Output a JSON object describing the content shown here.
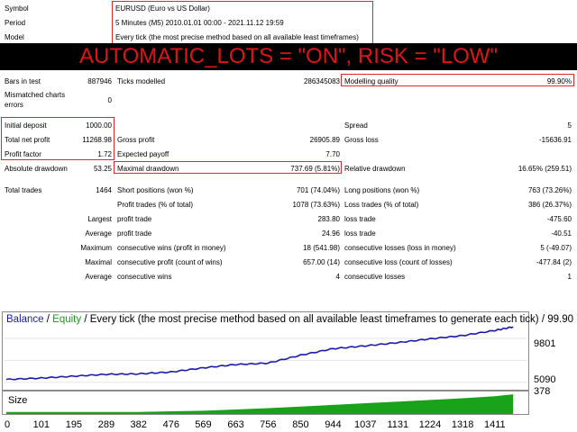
{
  "header": {
    "symbol_label": "Symbol",
    "symbol_value": "EURUSD (Euro vs US Dollar)",
    "period_label": "Period",
    "period_value": "5 Minutes (M5) 2010.01.01 00:00 - 2021.11.12 19:59",
    "model_label": "Model",
    "model_value": "Every tick (the most precise method based on all available least timeframes)"
  },
  "banner": {
    "text": "AUTOMATIC_LOTS = \"ON\", RISK = \"LOW\"",
    "color": "#e01414"
  },
  "stats": {
    "bars_label": "Bars in test",
    "bars_value": "887946",
    "ticks_label": "Ticks modelled",
    "ticks_value": "286345083",
    "quality_label": "Modelling quality",
    "quality_value": "99.90%",
    "mismatch_label_1": "Mismatched charts",
    "mismatch_label_2": "errors",
    "mismatch_value": "0",
    "deposit_label": "Initial deposit",
    "deposit_value": "1000.00",
    "spread_label": "Spread",
    "spread_value": "5",
    "netprofit_label": "Total net profit",
    "netprofit_value": "11268.98",
    "grossprofit_label": "Gross profit",
    "grossprofit_value": "26905.89",
    "grossloss_label": "Gross loss",
    "grossloss_value": "-15636.91",
    "pf_label": "Profit factor",
    "pf_value": "1.72",
    "payoff_label": "Expected payoff",
    "payoff_value": "7.70",
    "absdd_label": "Absolute drawdown",
    "absdd_value": "53.25",
    "maxdd_label": "Maximal drawdown",
    "maxdd_value": "737.69 (5.81%)",
    "reldd_label": "Relative drawdown",
    "reldd_value": "16.65% (259.51)",
    "trades_label": "Total trades",
    "trades_value": "1464",
    "short_label": "Short positions (won %)",
    "short_value": "701 (74.04%)",
    "long_label": "Long positions (won %)",
    "long_value": "763 (73.26%)",
    "profittr_label": "Profit trades (% of total)",
    "profittr_value": "1078 (73.63%)",
    "losstr_label": "Loss trades (% of total)",
    "losstr_value": "386 (26.37%)",
    "largest_label": "Largest",
    "largest_profit_label": "profit trade",
    "largest_profit_value": "283.80",
    "largest_loss_label": "loss trade",
    "largest_loss_value": "-475.60",
    "average_label": "Average",
    "avg_profit_label": "profit trade",
    "avg_profit_value": "24.96",
    "avg_loss_label": "loss trade",
    "avg_loss_value": "-40.51",
    "maximum_label": "Maximum",
    "max_wins_label": "consecutive wins (profit in money)",
    "max_wins_value": "18 (541.98)",
    "max_losses_label": "consecutive losses (loss in money)",
    "max_losses_value": "5 (-49.07)",
    "maximal_label": "Maximal",
    "maximal_profit_label": "consecutive profit (count of wins)",
    "maximal_profit_value": "657.00 (14)",
    "maximal_loss_label": "consecutive loss (count of losses)",
    "maximal_loss_value": "-477.84 (2)",
    "average2_label": "Average",
    "avg_wins_label": "consecutive wins",
    "avg_wins_value": "4",
    "avg_losses_label": "consecutive losses",
    "avg_losses_value": "1"
  },
  "chart": {
    "title_balance": "Balance",
    "title_sep1": " / ",
    "title_equity": "Equity",
    "title_rest": " / Every tick (the most precise method based on all available least timeframes to generate each tick) / 99.90",
    "size_label": "Size",
    "y_ticks": [
      "9801",
      "5090",
      "378"
    ],
    "x_ticks": [
      "0",
      "101",
      "195",
      "289",
      "382",
      "476",
      "569",
      "663",
      "756",
      "850",
      "944",
      "1037",
      "1131",
      "1224",
      "1318",
      "1411"
    ],
    "balance_color": "#1b1ba8",
    "equity_color": "#1a9a1a",
    "size_color": "#1aa31a",
    "highlight_color": "#e0282e"
  },
  "chart_data": {
    "type": "line",
    "x": [
      0,
      101,
      195,
      289,
      382,
      476,
      569,
      663,
      756,
      850,
      944,
      1037,
      1131,
      1224,
      1318,
      1411,
      1464
    ],
    "series": [
      {
        "name": "Balance",
        "values": [
          1000,
          1300,
          1700,
          2100,
          2200,
          2600,
          3500,
          4200,
          4500,
          6200,
          7600,
          8200,
          8900,
          9700,
          10400,
          11500,
          12269
        ]
      }
    ],
    "size_values": [
      0.1,
      0.1,
      0.1,
      0.1,
      0.1,
      0.13,
      0.16,
      0.22,
      0.28,
      0.36,
      0.44,
      0.52,
      0.6,
      0.68,
      0.76,
      0.86,
      0.95
    ],
    "ylim": [
      -1000,
      12500
    ],
    "y_ticks": [
      378,
      5090,
      9801
    ]
  }
}
